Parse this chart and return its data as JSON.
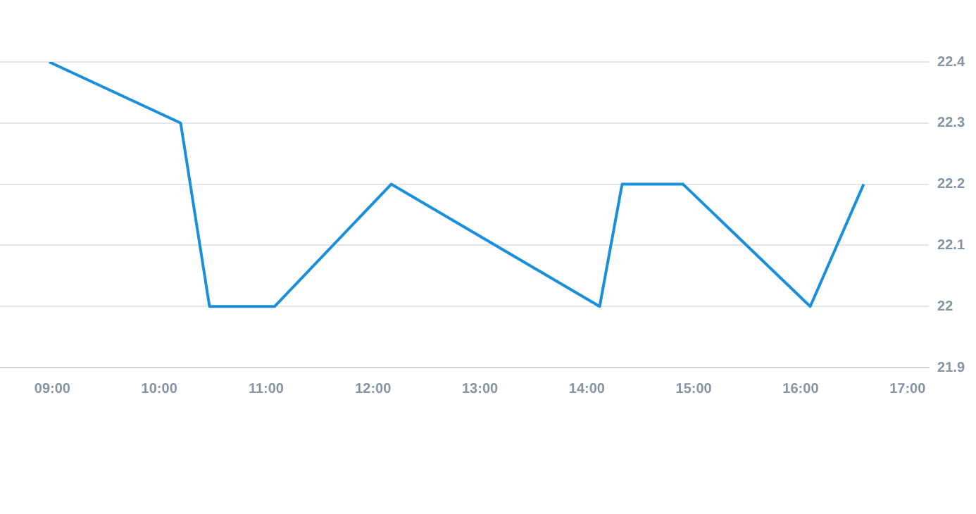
{
  "chart_data": {
    "type": "line",
    "x": [
      8.97,
      10.2,
      10.47,
      11.08,
      12.17,
      14.12,
      14.33,
      14.9,
      16.09,
      16.59
    ],
    "series": [
      {
        "color": "#1a8fdb",
        "values": [
          22.4,
          22.3,
          22.0,
          22.0,
          22.2,
          22.0,
          22.2,
          22.2,
          22.0,
          22.2
        ]
      }
    ],
    "xlim": [
      8.51,
      17.2
    ],
    "xticks": [
      {
        "value": 9,
        "label": "09:00"
      },
      {
        "value": 10,
        "label": "10:00"
      },
      {
        "value": 11,
        "label": "11:00"
      },
      {
        "value": 12,
        "label": "12:00"
      },
      {
        "value": 13,
        "label": "13:00"
      },
      {
        "value": 14,
        "label": "14:00"
      },
      {
        "value": 15,
        "label": "15:00"
      },
      {
        "value": 16,
        "label": "16:00"
      },
      {
        "value": 17,
        "label": "17:00"
      }
    ],
    "ylim": [
      21.9,
      22.4
    ],
    "yticks": [
      21.9,
      22,
      22.1,
      22.2,
      22.3,
      22.4
    ],
    "grid": "y",
    "marker": "none",
    "line_style": "solid",
    "legend": false
  }
}
